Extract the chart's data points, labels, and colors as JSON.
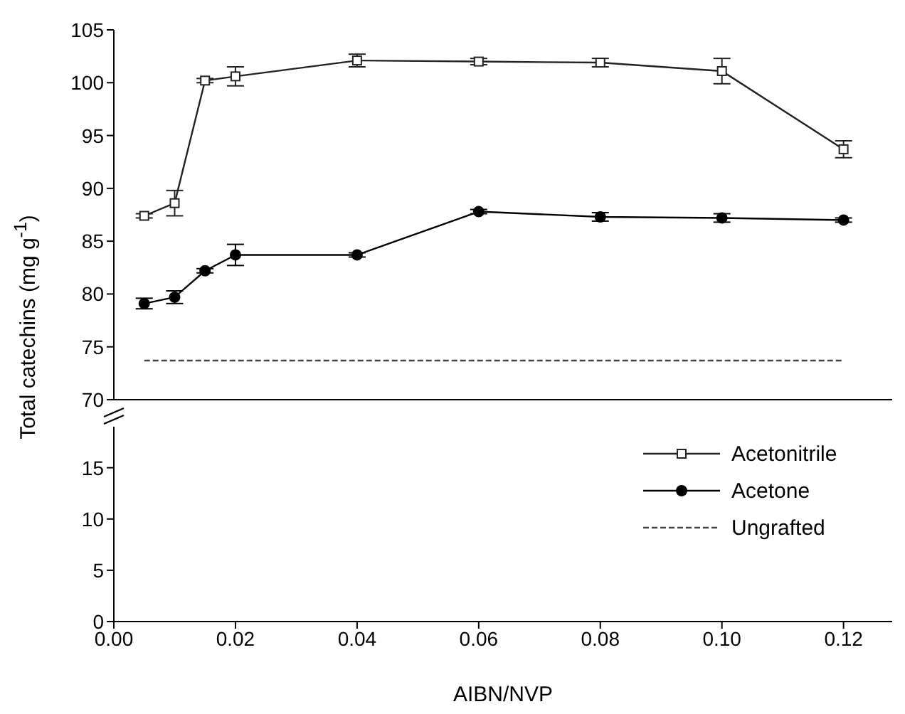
{
  "chart_data": [
    {
      "type": "line",
      "ylabel": "Total catechins (mg g$^{-1}$)",
      "xlim": [
        0,
        0.128
      ],
      "ylim": [
        70,
        105
      ],
      "yticks": [
        70,
        75,
        80,
        85,
        90,
        95,
        100,
        105
      ],
      "tick_labels": "y",
      "legend": "bottom right",
      "grid": false,
      "series": [
        {
          "name": "Acetonitrile",
          "color": "#222222",
          "marker": "square",
          "x": [
            0.005,
            0.01,
            0.015,
            0.02,
            0.04,
            0.06,
            0.08,
            0.1,
            0.12
          ],
          "values": [
            87.4,
            88.6,
            100.2,
            100.6,
            102.1,
            102.0,
            101.9,
            101.1,
            93.7
          ],
          "errors": [
            0.2,
            1.2,
            0.2,
            0.9,
            0.6,
            0.3,
            0.4,
            1.2,
            0.8
          ]
        },
        {
          "name": "Acetone",
          "color": "#000000",
          "marker": "circle",
          "x": [
            0.005,
            0.01,
            0.015,
            0.02,
            0.04,
            0.06,
            0.08,
            0.1,
            0.12
          ],
          "values": [
            79.1,
            79.7,
            82.2,
            83.7,
            83.7,
            87.8,
            87.3,
            87.2,
            87.0
          ],
          "errors": [
            0.5,
            0.6,
            0.2,
            1.0,
            0.2,
            0.2,
            0.4,
            0.4,
            0.2
          ]
        },
        {
          "name": "Ungrafted",
          "color": "#444444",
          "marker": "none",
          "line_style": "dashed",
          "x": [
            0.005,
            0.12
          ],
          "values": [
            73.7,
            73.7
          ]
        }
      ]
    },
    {
      "type": "line",
      "xlabel": "AIBN/NVP",
      "xlim": [
        0,
        0.128
      ],
      "xticks": [
        {
          "value": 0,
          "label": "0.00"
        },
        0.02,
        0.04,
        0.06,
        0.08,
        {
          "value": 0.1,
          "label": "0.10"
        },
        0.12
      ],
      "ylim": [
        0,
        19
      ],
      "yticks": [
        0,
        5,
        10,
        15
      ],
      "grid": false
    }
  ]
}
